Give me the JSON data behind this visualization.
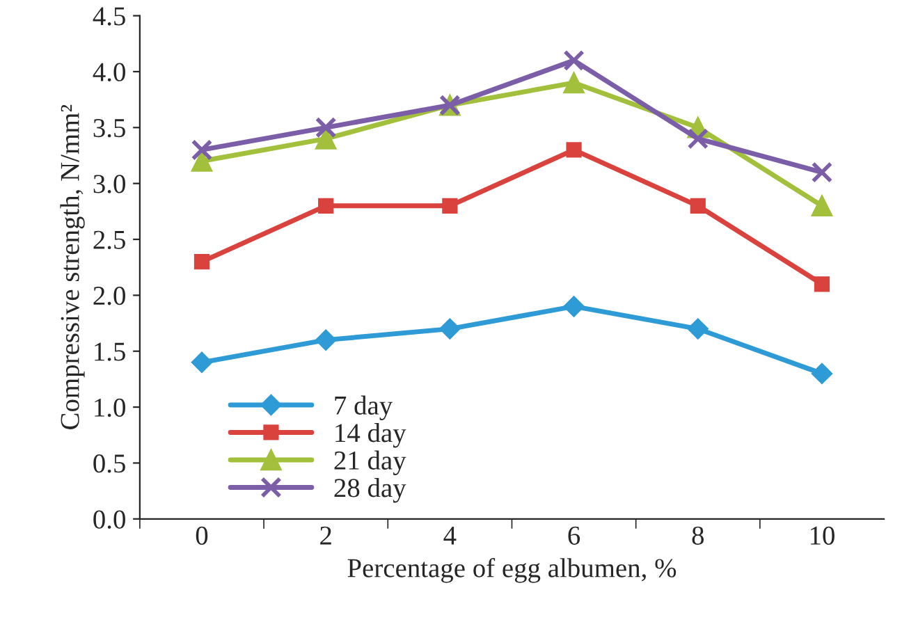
{
  "chart_data": {
    "type": "line",
    "xlabel": "Percentage of egg albumen, %",
    "ylabel": "Compressive strength, N/mm²",
    "categories": [
      "0",
      "2",
      "4",
      "6",
      "8",
      "10"
    ],
    "series": [
      {
        "name": "7 day",
        "color": "#2e9bd6",
        "marker": "diamond",
        "values": [
          1.4,
          1.6,
          1.7,
          1.9,
          1.7,
          1.3
        ]
      },
      {
        "name": "14 day",
        "color": "#d9423d",
        "marker": "square",
        "values": [
          2.3,
          2.8,
          2.8,
          3.3,
          2.8,
          2.1
        ]
      },
      {
        "name": "21 day",
        "color": "#a2c03c",
        "marker": "triangle",
        "values": [
          3.2,
          3.4,
          3.7,
          3.9,
          3.5,
          2.8
        ]
      },
      {
        "name": "28 day",
        "color": "#7b5ea7",
        "marker": "cross",
        "values": [
          3.3,
          3.5,
          3.7,
          4.1,
          3.4,
          3.1
        ]
      }
    ],
    "ylim": [
      0,
      4.5
    ],
    "yticks": [
      {
        "value": 0,
        "label": "0.0"
      },
      {
        "value": 0.5,
        "label": "0.5"
      },
      {
        "value": 1,
        "label": "1.0"
      },
      {
        "value": 1.5,
        "label": "1.5"
      },
      {
        "value": 2,
        "label": "2.0"
      },
      {
        "value": 2.5,
        "label": "2.5"
      },
      {
        "value": 3,
        "label": "3.0"
      },
      {
        "value": 3.5,
        "label": "3.5"
      },
      {
        "value": 4,
        "label": "4.0"
      },
      {
        "value": 4.5,
        "label": "4.5"
      }
    ],
    "grid": false,
    "legend": "bottom left",
    "line_style": "solid"
  }
}
